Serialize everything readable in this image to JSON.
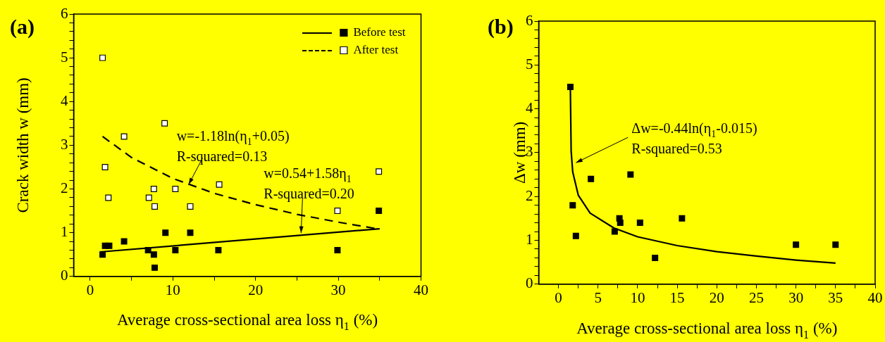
{
  "chart_data": [
    {
      "type": "scatter",
      "title": "(a)",
      "xlabel": "Average cross-sectional area loss η$_{1}$ (%)",
      "ylabel": "Crack width w (mm)",
      "xlim": [
        -2,
        40
      ],
      "xticks": [
        0,
        {
          "value": 5,
          "label": null
        },
        10,
        {
          "value": 15,
          "label": null
        },
        20,
        {
          "value": 25,
          "label": null
        },
        30,
        {
          "value": 35,
          "label": null
        },
        40
      ],
      "ylim": [
        0,
        6
      ],
      "yticks": [
        0,
        {
          "value": 0.2,
          "label": null
        },
        {
          "value": 0.4,
          "label": null
        },
        {
          "value": 0.6,
          "label": null
        },
        {
          "value": 0.8,
          "label": null
        },
        1,
        {
          "value": 1.2,
          "label": null
        },
        {
          "value": 1.4,
          "label": null
        },
        {
          "value": 1.6,
          "label": null
        },
        {
          "value": 1.8,
          "label": null
        },
        2,
        {
          "value": 2.2,
          "label": null
        },
        {
          "value": 2.4,
          "label": null
        },
        {
          "value": 2.6,
          "label": null
        },
        {
          "value": 2.8,
          "label": null
        },
        3,
        {
          "value": 3.2,
          "label": null
        },
        {
          "value": 3.4,
          "label": null
        },
        {
          "value": 3.6,
          "label": null
        },
        {
          "value": 3.8,
          "label": null
        },
        4,
        {
          "value": 4.2,
          "label": null
        },
        {
          "value": 4.4,
          "label": null
        },
        {
          "value": 4.6,
          "label": null
        },
        {
          "value": 4.8,
          "label": null
        },
        5,
        {
          "value": 5.2,
          "label": null
        },
        {
          "value": 5.4,
          "label": null
        },
        {
          "value": 5.6,
          "label": null
        },
        {
          "value": 5.8,
          "label": null
        },
        6
      ],
      "legend": "top right",
      "marker": "square",
      "series": [
        {
          "name": "Before test",
          "color": "#000000",
          "x": [
            1.5,
            1.8,
            2.3,
            4.1,
            7.0,
            7.7,
            7.8,
            9.1,
            10.3,
            12.1,
            15.5,
            29.9,
            34.9
          ],
          "values": [
            0.5,
            0.7,
            0.7,
            0.8,
            0.6,
            0.5,
            0.2,
            1.0,
            0.6,
            1.0,
            0.6,
            0.6,
            1.5
          ]
        },
        {
          "name": "After test",
          "color": "#ffffff",
          "x": [
            1.5,
            1.8,
            2.2,
            4.1,
            7.1,
            7.7,
            7.8,
            9.0,
            10.3,
            12.1,
            15.6,
            29.9,
            34.9
          ],
          "values": [
            5.0,
            2.5,
            1.8,
            3.2,
            1.8,
            2.0,
            1.6,
            3.5,
            2.0,
            1.6,
            2.1,
            1.5,
            2.4
          ]
        },
        {
          "type": "line",
          "color": "#000000",
          "line_style": "solid",
          "marker": "none",
          "x": [
            1.2,
            35
          ],
          "values": [
            0.56,
            1.09
          ]
        },
        {
          "type": "line",
          "color": "#000000",
          "line_style": "dashed",
          "marker": "none",
          "x": [
            1.5,
            5,
            10,
            15,
            20,
            25,
            30,
            35
          ],
          "values": [
            3.2,
            2.72,
            2.24,
            1.9,
            1.64,
            1.42,
            1.24,
            1.08
          ]
        }
      ],
      "annotations": [
        {
          "text": "w=-1.18ln(η$_{1}$+0.05)\nR-squared=0.13",
          "x": 11.9,
          "y": 2.1
        },
        {
          "text": "w=0.54+1.58η$_{1}$\nR-squared=0.20",
          "x": 25.5,
          "y": 0.99
        }
      ]
    },
    {
      "type": "scatter",
      "title": "(b)",
      "xlabel": "Average cross-sectional area loss η$_{1}$ (%)",
      "ylabel": "Δw (mm)",
      "xlim": [
        -2.5,
        40
      ],
      "xticks": [
        0,
        {
          "value": 2.5,
          "label": null
        },
        5,
        {
          "value": 7.5,
          "label": null
        },
        10,
        {
          "value": 12.5,
          "label": null
        },
        15,
        {
          "value": 17.5,
          "label": null
        },
        20,
        {
          "value": 22.5,
          "label": null
        },
        25,
        {
          "value": 27.5,
          "label": null
        },
        30,
        {
          "value": 32.5,
          "label": null
        },
        35,
        {
          "value": 37.5,
          "label": null
        },
        40
      ],
      "ylim": [
        0,
        6
      ],
      "yticks": [
        0,
        {
          "value": 0.2,
          "label": null
        },
        {
          "value": 0.4,
          "label": null
        },
        {
          "value": 0.6,
          "label": null
        },
        {
          "value": 0.8,
          "label": null
        },
        1,
        {
          "value": 1.2,
          "label": null
        },
        {
          "value": 1.4,
          "label": null
        },
        {
          "value": 1.6,
          "label": null
        },
        {
          "value": 1.8,
          "label": null
        },
        2,
        {
          "value": 2.2,
          "label": null
        },
        {
          "value": 2.4,
          "label": null
        },
        {
          "value": 2.6,
          "label": null
        },
        {
          "value": 2.8,
          "label": null
        },
        3,
        {
          "value": 3.2,
          "label": null
        },
        {
          "value": 3.4,
          "label": null
        },
        {
          "value": 3.6,
          "label": null
        },
        {
          "value": 3.8,
          "label": null
        },
        4,
        {
          "value": 4.2,
          "label": null
        },
        {
          "value": 4.4,
          "label": null
        },
        {
          "value": 4.6,
          "label": null
        },
        {
          "value": 4.8,
          "label": null
        },
        5,
        {
          "value": 5.2,
          "label": null
        },
        {
          "value": 5.4,
          "label": null
        },
        {
          "value": 5.6,
          "label": null
        },
        {
          "value": 5.8,
          "label": null
        },
        6
      ],
      "marker": "square",
      "series": [
        {
          "color": "#000000",
          "x": [
            1.5,
            1.8,
            2.2,
            4.1,
            7.1,
            7.7,
            7.8,
            9.1,
            10.3,
            12.2,
            15.6,
            30.0,
            35.0
          ],
          "values": [
            4.5,
            1.8,
            1.1,
            2.4,
            1.2,
            1.5,
            1.4,
            2.5,
            1.4,
            0.6,
            1.5,
            0.9,
            0.9
          ]
        },
        {
          "type": "line",
          "color": "#000000",
          "line_style": "solid",
          "marker": "none",
          "x": [
            1.5,
            1.6,
            1.8,
            2.5,
            4,
            7,
            10,
            15,
            20,
            25,
            30,
            35
          ],
          "values": [
            4.5,
            3.04,
            2.56,
            2.03,
            1.62,
            1.28,
            1.08,
            0.88,
            0.74,
            0.64,
            0.55,
            0.48
          ]
        }
      ],
      "annotations": [
        {
          "text": "Δw=-0.44ln(η$_{1}$-0.015)\nR-squared=0.53",
          "x": 2.2,
          "y": 2.77
        }
      ]
    }
  ]
}
